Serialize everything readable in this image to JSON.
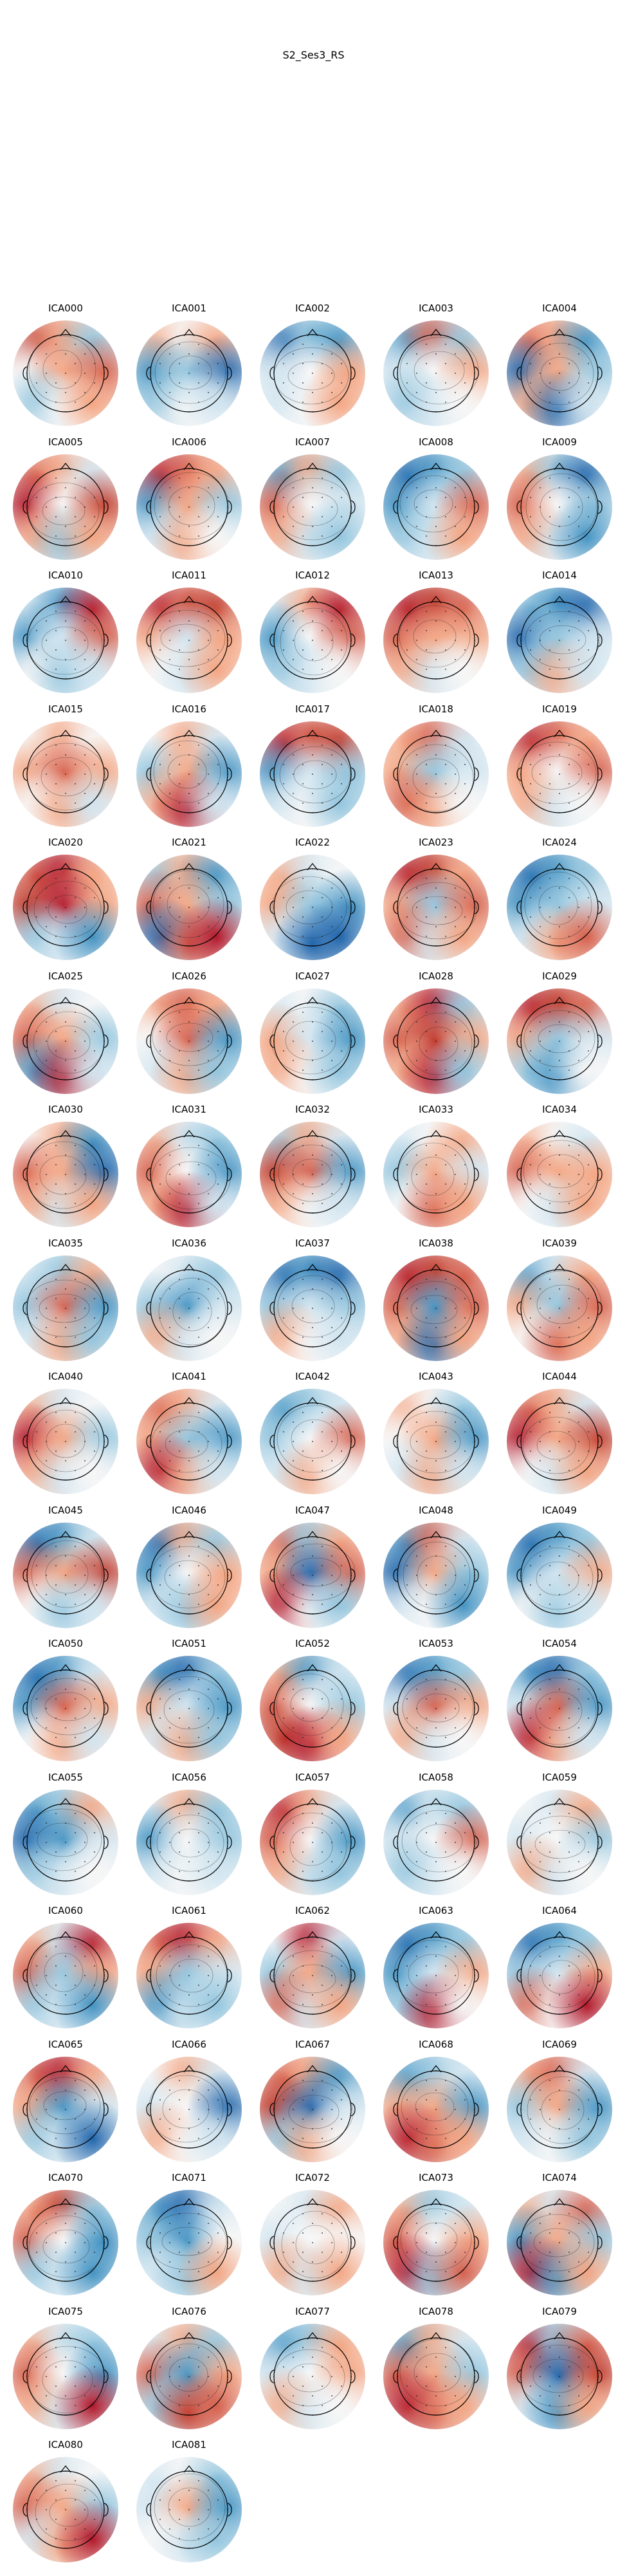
{
  "figure_title": "S2_Ses3_RS",
  "components": [
    {
      "label": "ICA000",
      "colors": [
        "#c0392b",
        "#f4a582",
        "#92c5de",
        "#f7f7f7",
        "#f4a582",
        "#d6604d",
        "#92c5de",
        "#f7f7f7",
        "#f4a582"
      ]
    },
    {
      "label": "ICA001",
      "colors": [
        "#f4a582",
        "#f7f7f7",
        "#f4a582",
        "#4393c3",
        "#92c5de",
        "#2166ac",
        "#92c5de",
        "#f7f7f7",
        "#d1e5f0"
      ]
    },
    {
      "label": "ICA002",
      "colors": [
        "#2166ac",
        "#92c5de",
        "#4393c3",
        "#d1e5f0",
        "#f7f7f7",
        "#f4a582",
        "#d1e5f0",
        "#f7f7f7",
        "#f4a582"
      ]
    },
    {
      "label": "ICA003",
      "colors": [
        "#4393c3",
        "#d6604d",
        "#92c5de",
        "#d1e5f0",
        "#f7f7f7",
        "#f4a582",
        "#92c5de",
        "#d1e5f0",
        "#f7f7f7"
      ]
    },
    {
      "label": "ICA004",
      "colors": [
        "#d6604d",
        "#f4a582",
        "#4393c3",
        "#2166ac",
        "#f4a582",
        "#92c5de",
        "#f4a582",
        "#2166ac",
        "#d1e5f0"
      ]
    },
    {
      "label": "ICA005",
      "colors": [
        "#d6604d",
        "#f4a582",
        "#d1e5f0",
        "#b2182b",
        "#f7f7f7",
        "#c0392b",
        "#f4a582",
        "#92c5de",
        "#f4a582"
      ]
    },
    {
      "label": "ICA006",
      "colors": [
        "#b2182b",
        "#d6604d",
        "#f4a582",
        "#4393c3",
        "#f4a582",
        "#92c5de",
        "#d1e5f0",
        "#f4a582",
        "#f7f7f7"
      ]
    },
    {
      "label": "ICA007",
      "colors": [
        "#4393c3",
        "#f4a582",
        "#92c5de",
        "#d6604d",
        "#f7f7f7",
        "#d1e5f0",
        "#f4a582",
        "#d1e5f0",
        "#92c5de"
      ]
    },
    {
      "label": "ICA008",
      "colors": [
        "#2166ac",
        "#4393c3",
        "#92c5de",
        "#4393c3",
        "#d1e5f0",
        "#d6604d",
        "#92c5de",
        "#d1e5f0",
        "#f4a582"
      ]
    },
    {
      "label": "ICA009",
      "colors": [
        "#f4a582",
        "#92c5de",
        "#2166ac",
        "#d6604d",
        "#f7f7f7",
        "#92c5de",
        "#f4a582",
        "#d1e5f0",
        "#4393c3"
      ]
    },
    {
      "label": "ICA010",
      "colors": [
        "#d1e5f0",
        "#4393c3",
        "#b2182b",
        "#4393c3",
        "#d1e5f0",
        "#d6604d",
        "#f7f7f7",
        "#92c5de",
        "#d1e5f0"
      ]
    },
    {
      "label": "ICA011",
      "colors": [
        "#b2182b",
        "#d6604d",
        "#c0392b",
        "#f4a582",
        "#d1e5f0",
        "#f4a582",
        "#f7f7f7",
        "#d1e5f0",
        "#f4a582"
      ]
    },
    {
      "label": "ICA012",
      "colors": [
        "#d1e5f0",
        "#f4a582",
        "#b2182b",
        "#4393c3",
        "#f7f7f7",
        "#d6604d",
        "#92c5de",
        "#d1e5f0",
        "#f7f7f7"
      ]
    },
    {
      "label": "ICA013",
      "colors": [
        "#b2182b",
        "#c0392b",
        "#d6604d",
        "#d6604d",
        "#f4a582",
        "#f4a582",
        "#f4a582",
        "#d1e5f0",
        "#f7f7f7"
      ]
    },
    {
      "label": "ICA014",
      "colors": [
        "#92c5de",
        "#4393c3",
        "#2166ac",
        "#2166ac",
        "#92c5de",
        "#d1e5f0",
        "#92c5de",
        "#f4a582",
        "#d1e5f0"
      ]
    },
    {
      "label": "ICA015",
      "colors": [
        "#f7f7f7",
        "#f4a582",
        "#f7f7f7",
        "#f4a582",
        "#d6604d",
        "#f4a582",
        "#f7f7f7",
        "#f4a582",
        "#d1e5f0"
      ]
    },
    {
      "label": "ICA016",
      "colors": [
        "#f7f7f7",
        "#f4a582",
        "#d1e5f0",
        "#92c5de",
        "#f4a582",
        "#4393c3",
        "#f4a582",
        "#b2182b",
        "#d1e5f0"
      ]
    },
    {
      "label": "ICA017",
      "colors": [
        "#b2182b",
        "#d6604d",
        "#c0392b",
        "#4393c3",
        "#d1e5f0",
        "#92c5de",
        "#d1e5f0",
        "#f7f7f7",
        "#92c5de"
      ]
    },
    {
      "label": "ICA018",
      "colors": [
        "#f4a582",
        "#d6604d",
        "#d1e5f0",
        "#f4a582",
        "#92c5de",
        "#d1e5f0",
        "#d6604d",
        "#f4a582",
        "#f7f7f7"
      ]
    },
    {
      "label": "ICA019",
      "colors": [
        "#b2182b",
        "#d6604d",
        "#f4a582",
        "#f4a582",
        "#f7f7f7",
        "#d6604d",
        "#f4a582",
        "#d1e5f0",
        "#f7f7f7"
      ]
    },
    {
      "label": "ICA020",
      "colors": [
        "#d6604d",
        "#b2182b",
        "#f4a582",
        "#c0392b",
        "#b2182b",
        "#f4a582",
        "#92c5de",
        "#d1e5f0",
        "#4393c3"
      ]
    },
    {
      "label": "ICA021",
      "colors": [
        "#92c5de",
        "#f4a582",
        "#4393c3",
        "#d6604d",
        "#f4a582",
        "#92c5de",
        "#2166ac",
        "#d6604d",
        "#b2182b"
      ]
    },
    {
      "label": "ICA022",
      "colors": [
        "#f4a582",
        "#d1e5f0",
        "#f7f7f7",
        "#f4a582",
        "#92c5de",
        "#4393c3",
        "#d1e5f0",
        "#2166ac",
        "#2166ac"
      ]
    },
    {
      "label": "ICA023",
      "colors": [
        "#b2182b",
        "#c0392b",
        "#f4a582",
        "#f4a582",
        "#92c5de",
        "#d6604d",
        "#d6604d",
        "#d1e5f0",
        "#f4a582"
      ]
    },
    {
      "label": "ICA024",
      "colors": [
        "#2166ac",
        "#4393c3",
        "#92c5de",
        "#4393c3",
        "#92c5de",
        "#d1e5f0",
        "#d1e5f0",
        "#f4a582",
        "#d6604d"
      ]
    },
    {
      "label": "ICA025",
      "colors": [
        "#f4a582",
        "#d1e5f0",
        "#f7f7f7",
        "#d6604d",
        "#f4a582",
        "#92c5de",
        "#4393c3",
        "#b2182b",
        "#d1e5f0"
      ]
    },
    {
      "label": "ICA026",
      "colors": [
        "#f4a582",
        "#d6604d",
        "#f4a582",
        "#f7f7f7",
        "#d6604d",
        "#4393c3",
        "#d1e5f0",
        "#f4a582",
        "#92c5de"
      ]
    },
    {
      "label": "ICA027",
      "colors": [
        "#d1e5f0",
        "#f7f7f7",
        "#92c5de",
        "#f4a582",
        "#d1e5f0",
        "#4393c3",
        "#f4a582",
        "#f7f7f7",
        "#92c5de"
      ]
    },
    {
      "label": "ICA028",
      "colors": [
        "#f4a582",
        "#b2182b",
        "#92c5de",
        "#d6604d",
        "#c0392b",
        "#f4a582",
        "#f4a582",
        "#b2182b",
        "#92c5de"
      ]
    },
    {
      "label": "ICA029",
      "colors": [
        "#b2182b",
        "#c0392b",
        "#d6604d",
        "#f4a582",
        "#92c5de",
        "#d1e5f0",
        "#92c5de",
        "#4393c3",
        "#f7f7f7"
      ]
    },
    {
      "label": "ICA030",
      "colors": [
        "#f7f7f7",
        "#f4a582",
        "#4393c3",
        "#d6604d",
        "#f4a582",
        "#2166ac",
        "#f4a582",
        "#d1e5f0",
        "#f4a582"
      ]
    },
    {
      "label": "ICA031",
      "colors": [
        "#f4a582",
        "#d1e5f0",
        "#92c5de",
        "#d6604d",
        "#f7f7f7",
        "#4393c3",
        "#f4a582",
        "#b2182b",
        "#d1e5f0"
      ]
    },
    {
      "label": "ICA032",
      "colors": [
        "#92c5de",
        "#f4a582",
        "#d1e5f0",
        "#c0392b",
        "#d6604d",
        "#4393c3",
        "#f4a582",
        "#f7f7f7",
        "#d1e5f0"
      ]
    },
    {
      "label": "ICA033",
      "colors": [
        "#d1e5f0",
        "#f7f7f7",
        "#f4a582",
        "#92c5de",
        "#f4a582",
        "#d1e5f0",
        "#f7f7f7",
        "#d6604d",
        "#f4a582"
      ]
    },
    {
      "label": "ICA034",
      "colors": [
        "#f4a582",
        "#f7f7f7",
        "#d1e5f0",
        "#d6604d",
        "#f4a582",
        "#f4a582",
        "#f7f7f7",
        "#d1e5f0",
        "#f4a582"
      ]
    },
    {
      "label": "ICA035",
      "colors": [
        "#d1e5f0",
        "#92c5de",
        "#f4a582",
        "#92c5de",
        "#d6604d",
        "#4393c3",
        "#d1e5f0",
        "#f4a582",
        "#92c5de"
      ]
    },
    {
      "label": "ICA036",
      "colors": [
        "#f7f7f7",
        "#d1e5f0",
        "#92c5de",
        "#92c5de",
        "#4393c3",
        "#d1e5f0",
        "#f4a582",
        "#d1e5f0",
        "#f7f7f7"
      ]
    },
    {
      "label": "ICA037",
      "colors": [
        "#2166ac",
        "#4393c3",
        "#2166ac",
        "#92c5de",
        "#d1e5f0",
        "#92c5de",
        "#f4a582",
        "#f7f7f7",
        "#d1e5f0"
      ]
    },
    {
      "label": "ICA038",
      "colors": [
        "#b2182b",
        "#c0392b",
        "#d6604d",
        "#d6604d",
        "#4393c3",
        "#d6604d",
        "#f4a582",
        "#2166ac",
        "#f4a582"
      ]
    },
    {
      "label": "ICA039",
      "colors": [
        "#4393c3",
        "#d1e5f0",
        "#f4a582",
        "#f4a582",
        "#92c5de",
        "#d6604d",
        "#f7f7f7",
        "#d6604d",
        "#f4a582"
      ]
    },
    {
      "label": "ICA040",
      "colors": [
        "#f4a582",
        "#d1e5f0",
        "#f7f7f7",
        "#b2182b",
        "#f4a582",
        "#92c5de",
        "#f4a582",
        "#d1e5f0",
        "#f7f7f7"
      ]
    },
    {
      "label": "ICA041",
      "colors": [
        "#d6604d",
        "#f4a582",
        "#d1e5f0",
        "#f4a582",
        "#92c5de",
        "#4393c3",
        "#b2182b",
        "#f4a582",
        "#d1e5f0"
      ]
    },
    {
      "label": "ICA042",
      "colors": [
        "#4393c3",
        "#92c5de",
        "#d1e5f0",
        "#92c5de",
        "#f7f7f7",
        "#d6604d",
        "#d1e5f0",
        "#f4a582",
        "#f7f7f7"
      ]
    },
    {
      "label": "ICA043",
      "colors": [
        "#f4a582",
        "#f7f7f7",
        "#92c5de",
        "#f7f7f7",
        "#f4a582",
        "#4393c3",
        "#d1e5f0",
        "#f4a582",
        "#d1e5f0"
      ]
    },
    {
      "label": "ICA044",
      "colors": [
        "#d6604d",
        "#f4a582",
        "#d1e5f0",
        "#b2182b",
        "#f4a582",
        "#c0392b",
        "#f7f7f7",
        "#d1e5f0",
        "#f4a582"
      ]
    },
    {
      "label": "ICA045",
      "colors": [
        "#2166ac",
        "#4393c3",
        "#d1e5f0",
        "#d6604d",
        "#f4a582",
        "#c0392b",
        "#f7f7f7",
        "#92c5de",
        "#d1e5f0"
      ]
    },
    {
      "label": "ICA046",
      "colors": [
        "#2166ac",
        "#f4a582",
        "#92c5de",
        "#4393c3",
        "#f7f7f7",
        "#f4a582",
        "#d1e5f0",
        "#92c5de",
        "#f4a582"
      ]
    },
    {
      "label": "ICA047",
      "colors": [
        "#d6604d",
        "#92c5de",
        "#f4a582",
        "#f4a582",
        "#2166ac",
        "#d6604d",
        "#b2182b",
        "#f7f7f7",
        "#92c5de"
      ]
    },
    {
      "label": "ICA048",
      "colors": [
        "#4393c3",
        "#d6604d",
        "#d1e5f0",
        "#2166ac",
        "#f4a582",
        "#92c5de",
        "#d1e5f0",
        "#f7f7f7",
        "#4393c3"
      ]
    },
    {
      "label": "ICA049",
      "colors": [
        "#2166ac",
        "#4393c3",
        "#92c5de",
        "#4393c3",
        "#d1e5f0",
        "#f4a582",
        "#f7f7f7",
        "#92c5de",
        "#d1e5f0"
      ]
    },
    {
      "label": "ICA050",
      "colors": [
        "#2166ac",
        "#4393c3",
        "#d1e5f0",
        "#4393c3",
        "#d6604d",
        "#f4a582",
        "#f7f7f7",
        "#f4a582",
        "#d1e5f0"
      ]
    },
    {
      "label": "ICA051",
      "colors": [
        "#4393c3",
        "#2166ac",
        "#92c5de",
        "#f4a582",
        "#d1e5f0",
        "#4393c3",
        "#d1e5f0",
        "#f4a582",
        "#92c5de"
      ]
    },
    {
      "label": "ICA052",
      "colors": [
        "#f4a582",
        "#4393c3",
        "#d1e5f0",
        "#d6604d",
        "#f7f7f7",
        "#92c5de",
        "#c0392b",
        "#b2182b",
        "#f4a582"
      ]
    },
    {
      "label": "ICA053",
      "colors": [
        "#2166ac",
        "#4393c3",
        "#92c5de",
        "#d1e5f0",
        "#d6604d",
        "#f4a582",
        "#f4a582",
        "#d1e5f0",
        "#f7f7f7"
      ]
    },
    {
      "label": "ICA054",
      "colors": [
        "#4393c3",
        "#2166ac",
        "#92c5de",
        "#d1e5f0",
        "#d6604d",
        "#4393c3",
        "#b2182b",
        "#f4a582",
        "#d1e5f0"
      ]
    },
    {
      "label": "ICA055",
      "colors": [
        "#4393c3",
        "#92c5de",
        "#f4a582",
        "#2166ac",
        "#4393c3",
        "#d1e5f0",
        "#92c5de",
        "#d1e5f0",
        "#f7f7f7"
      ]
    },
    {
      "label": "ICA056",
      "colors": [
        "#d1e5f0",
        "#f4a582",
        "#92c5de",
        "#4393c3",
        "#f7f7f7",
        "#92c5de",
        "#d1e5f0",
        "#f7f7f7",
        "#d1e5f0"
      ]
    },
    {
      "label": "ICA057",
      "colors": [
        "#b2182b",
        "#f4a582",
        "#d1e5f0",
        "#d6604d",
        "#f7f7f7",
        "#4393c3",
        "#f4a582",
        "#d1e5f0",
        "#92c5de"
      ]
    },
    {
      "label": "ICA058",
      "colors": [
        "#4393c3",
        "#d1e5f0",
        "#92c5de",
        "#d1e5f0",
        "#f7f7f7",
        "#d6604d",
        "#92c5de",
        "#d1e5f0",
        "#f7f7f7"
      ]
    },
    {
      "label": "ICA059",
      "colors": [
        "#f7f7f7",
        "#d1e5f0",
        "#f4a582",
        "#d1e5f0",
        "#f7f7f7",
        "#92c5de",
        "#f4a582",
        "#d1e5f0",
        "#f7f7f7"
      ]
    },
    {
      "label": "ICA060",
      "colors": [
        "#f4a582",
        "#d1e5f0",
        "#b2182b",
        "#d6604d",
        "#92c5de",
        "#f4a582",
        "#92c5de",
        "#d1e5f0",
        "#4393c3"
      ]
    },
    {
      "label": "ICA061",
      "colors": [
        "#d6604d",
        "#b2182b",
        "#f4a582",
        "#f4a582",
        "#92c5de",
        "#d1e5f0",
        "#4393c3",
        "#d1e5f0",
        "#92c5de"
      ]
    },
    {
      "label": "ICA062",
      "colors": [
        "#f7f7f7",
        "#b2182b",
        "#d1e5f0",
        "#92c5de",
        "#f4a582",
        "#4393c3",
        "#d6604d",
        "#d1e5f0",
        "#f4a582"
      ]
    },
    {
      "label": "ICA063",
      "colors": [
        "#2166ac",
        "#4393c3",
        "#92c5de",
        "#4393c3",
        "#d1e5f0",
        "#f4a582",
        "#92c5de",
        "#b2182b",
        "#f7f7f7"
      ]
    },
    {
      "label": "ICA064",
      "colors": [
        "#2166ac",
        "#4393c3",
        "#92c5de",
        "#92c5de",
        "#d1e5f0",
        "#f4a582",
        "#d6604d",
        "#f7f7f7",
        "#b2182b"
      ]
    },
    {
      "label": "ICA065",
      "colors": [
        "#d6604d",
        "#b2182b",
        "#f4a582",
        "#f4a582",
        "#4393c3",
        "#d1e5f0",
        "#92c5de",
        "#d1e5f0",
        "#2166ac"
      ]
    },
    {
      "label": "ICA066",
      "colors": [
        "#f7f7f7",
        "#f4a582",
        "#d1e5f0",
        "#d1e5f0",
        "#f7f7f7",
        "#2166ac",
        "#f4a582",
        "#f7f7f7",
        "#d1e5f0"
      ]
    },
    {
      "label": "ICA067",
      "colors": [
        "#d6604d",
        "#f4a582",
        "#4393c3",
        "#c0392b",
        "#2166ac",
        "#d1e5f0",
        "#92c5de",
        "#f4a582",
        "#f7f7f7"
      ]
    },
    {
      "label": "ICA068",
      "colors": [
        "#4393c3",
        "#92c5de",
        "#d1e5f0",
        "#f4a582",
        "#f4a582",
        "#4393c3",
        "#b2182b",
        "#d6604d",
        "#f4a582"
      ]
    },
    {
      "label": "ICA069",
      "colors": [
        "#f4a582",
        "#d6604d",
        "#d1e5f0",
        "#92c5de",
        "#f4a582",
        "#4393c3",
        "#d1e5f0",
        "#f7f7f7",
        "#92c5de"
      ]
    },
    {
      "label": "ICA070",
      "colors": [
        "#f4a582",
        "#c0392b",
        "#92c5de",
        "#d6604d",
        "#f7f7f7",
        "#4393c3",
        "#92c5de",
        "#d1e5f0",
        "#4393c3"
      ]
    },
    {
      "label": "ICA071",
      "colors": [
        "#4393c3",
        "#2166ac",
        "#d1e5f0",
        "#92c5de",
        "#4393c3",
        "#f7f7f7",
        "#d1e5f0",
        "#92c5de",
        "#f4a582"
      ]
    },
    {
      "label": "ICA072",
      "colors": [
        "#f7f7f7",
        "#d1e5f0",
        "#f4a582",
        "#d1e5f0",
        "#f7f7f7",
        "#f7f7f7",
        "#f4a582",
        "#d1e5f0",
        "#f4a582"
      ]
    },
    {
      "label": "ICA073",
      "colors": [
        "#f4a582",
        "#92c5de",
        "#d1e5f0",
        "#d6604d",
        "#f7f7f7",
        "#f4a582",
        "#b2182b",
        "#92c5de",
        "#d6604d"
      ]
    },
    {
      "label": "ICA074",
      "colors": [
        "#f4a582",
        "#d1e5f0",
        "#d6604d",
        "#4393c3",
        "#f4a582",
        "#92c5de",
        "#b2182b",
        "#4393c3",
        "#f4a582"
      ]
    },
    {
      "label": "ICA075",
      "colors": [
        "#f4a582",
        "#d1e5f0",
        "#92c5de",
        "#d6604d",
        "#f7f7f7",
        "#4393c3",
        "#f4a582",
        "#d1e5f0",
        "#b2182b"
      ]
    },
    {
      "label": "ICA076",
      "colors": [
        "#d1e5f0",
        "#f4a582",
        "#92c5de",
        "#d6604d",
        "#4393c3",
        "#f4a582",
        "#92c5de",
        "#c0392b",
        "#d6604d"
      ]
    },
    {
      "label": "ICA077",
      "colors": [
        "#4393c3",
        "#92c5de",
        "#f4a582",
        "#d1e5f0",
        "#f7f7f7",
        "#f4a582",
        "#f4a582",
        "#d1e5f0",
        "#f7f7f7"
      ]
    },
    {
      "label": "ICA078",
      "colors": [
        "#4393c3",
        "#f4a582",
        "#d1e5f0",
        "#d6604d",
        "#f4a582",
        "#92c5de",
        "#b2182b",
        "#d6604d",
        "#f4a582"
      ]
    },
    {
      "label": "ICA079",
      "colors": [
        "#b2182b",
        "#92c5de",
        "#d6604d",
        "#d6604d",
        "#2166ac",
        "#c0392b",
        "#d1e5f0",
        "#4393c3",
        "#f4a582"
      ]
    },
    {
      "label": "ICA080",
      "colors": [
        "#f4a582",
        "#d1e5f0",
        "#f7f7f7",
        "#d6604d",
        "#f4a582",
        "#92c5de",
        "#d1e5f0",
        "#f4a582",
        "#b2182b"
      ]
    },
    {
      "label": "ICA081",
      "colors": [
        "#d1e5f0",
        "#f7f7f7",
        "#92c5de",
        "#d1e5f0",
        "#f4a582",
        "#4393c3",
        "#f7f7f7",
        "#d1e5f0",
        "#92c5de"
      ]
    }
  ]
}
